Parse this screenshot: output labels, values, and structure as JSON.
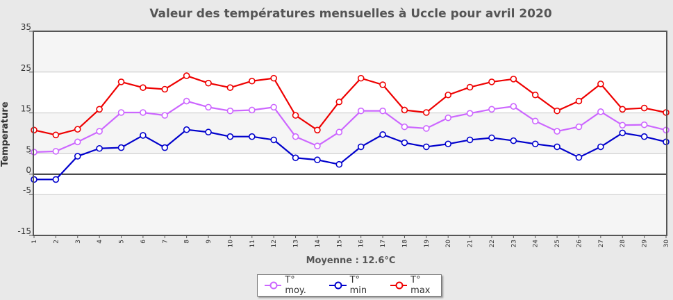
{
  "chart_data": {
    "type": "line",
    "title": "Valeur des températures mensuelles à Uccle pour avril 2020",
    "ylabel": "Temperature",
    "xlabel": "",
    "subtitle": "Moyenne : 12.6°C",
    "x": [
      1,
      2,
      3,
      4,
      5,
      6,
      7,
      8,
      9,
      10,
      11,
      12,
      13,
      14,
      15,
      16,
      17,
      18,
      19,
      20,
      21,
      22,
      23,
      24,
      25,
      26,
      27,
      28,
      29,
      30
    ],
    "y_ticks": [
      35,
      25,
      15,
      5,
      0,
      -5,
      -15
    ],
    "ylim": [
      -15,
      35
    ],
    "legend_position": "bottom",
    "series": [
      {
        "name": "T° moy.",
        "color": "#cc66ff",
        "values": [
          5.4,
          5.6,
          7.9,
          10.5,
          15.1,
          15.1,
          14.4,
          17.9,
          16.4,
          15.5,
          15.7,
          16.4,
          9.2,
          6.9,
          10.3,
          15.5,
          15.5,
          11.6,
          11.2,
          13.8,
          14.9,
          15.9,
          16.6,
          13.0,
          10.5,
          11.6,
          15.3,
          12.0,
          12.1,
          10.8
        ]
      },
      {
        "name": "T° min",
        "color": "#0000cc",
        "values": [
          -1.3,
          -1.3,
          4.4,
          6.3,
          6.5,
          9.5,
          6.5,
          10.9,
          10.3,
          9.2,
          9.2,
          8.4,
          4.0,
          3.5,
          2.4,
          6.7,
          9.7,
          7.7,
          6.7,
          7.4,
          8.4,
          8.9,
          8.2,
          7.4,
          6.7,
          4.1,
          6.7,
          10.1,
          9.2,
          7.9
        ]
      },
      {
        "name": "T° max",
        "color": "#ee0000",
        "values": [
          10.8,
          9.6,
          11.0,
          15.9,
          22.6,
          21.2,
          20.8,
          24.1,
          22.3,
          21.2,
          22.8,
          23.5,
          14.4,
          10.8,
          17.7,
          23.5,
          21.9,
          15.7,
          15.1,
          19.4,
          21.3,
          22.6,
          23.3,
          19.4,
          15.5,
          17.9,
          22.1,
          15.9,
          16.2,
          15.1
        ]
      }
    ]
  }
}
